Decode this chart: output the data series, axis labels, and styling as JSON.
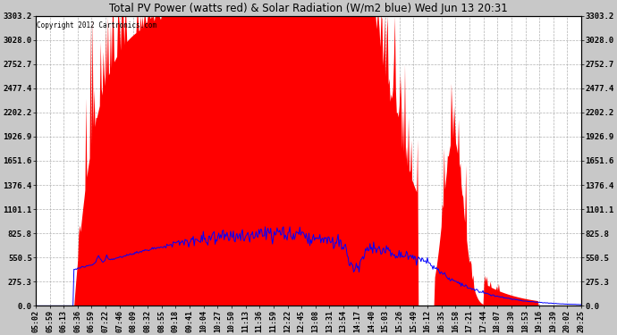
{
  "title": "Total PV Power (watts red) & Solar Radiation (W/m2 blue) Wed Jun 13 20:31",
  "copyright": "Copyright 2012 Cartronics.com",
  "yticks": [
    0.0,
    275.3,
    550.5,
    825.8,
    1101.1,
    1376.4,
    1651.6,
    1926.9,
    2202.2,
    2477.4,
    2752.7,
    3028.0,
    3303.2
  ],
  "ymax": 3303.2,
  "pv_color": "red",
  "solar_color": "blue",
  "xtick_labels": [
    "05:02",
    "05:59",
    "06:13",
    "06:36",
    "06:59",
    "07:22",
    "07:46",
    "08:09",
    "08:32",
    "08:55",
    "09:18",
    "09:41",
    "10:04",
    "10:27",
    "10:50",
    "11:13",
    "11:36",
    "11:59",
    "12:22",
    "12:45",
    "13:08",
    "13:31",
    "13:54",
    "14:17",
    "14:40",
    "15:03",
    "15:26",
    "15:49",
    "16:12",
    "16:35",
    "16:58",
    "17:21",
    "17:44",
    "18:07",
    "18:30",
    "18:53",
    "19:16",
    "19:39",
    "20:02",
    "20:25"
  ],
  "n_points": 600,
  "pv_peak": 3303.2,
  "solar_peak": 880.0,
  "fig_width": 6.9,
  "fig_height": 3.75,
  "dpi": 100
}
